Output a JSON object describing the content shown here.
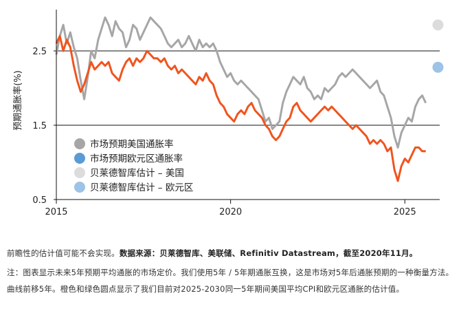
{
  "chart_data": {
    "type": "line",
    "ylabel": "预期通胀率(%)",
    "xlim": [
      2015,
      2026
    ],
    "ylim": [
      0.5,
      3.0
    ],
    "y_ticks": [
      "0.5",
      "1.5",
      "2.5"
    ],
    "y_tick_values": [
      0.5,
      1.5,
      2.5
    ],
    "x_ticks": [
      "2015",
      "2020",
      "2025"
    ],
    "x_tick_values": [
      2015,
      2020,
      2025
    ],
    "gridlines": [
      0.5,
      1.5,
      2.5
    ],
    "legend": {
      "placement": "bottom-left",
      "entries": [
        {
          "label": "市场预期美国通胀率",
          "color": "#a6a6a6"
        },
        {
          "label": "市场预期欧元区通胀率",
          "color": "#5b9bd5"
        },
        {
          "label": "贝莱德智库估计 – 美国",
          "color": "#dcdcdc"
        },
        {
          "label": "贝莱德智库估计 – 欧元区",
          "color": "#9dc3e6"
        }
      ]
    },
    "series": [
      {
        "color": "#a6a6a6",
        "points": [
          [
            2015.0,
            2.45
          ],
          [
            2015.1,
            2.7
          ],
          [
            2015.2,
            2.85
          ],
          [
            2015.3,
            2.6
          ],
          [
            2015.4,
            2.75
          ],
          [
            2015.5,
            2.55
          ],
          [
            2015.6,
            2.4
          ],
          [
            2015.7,
            2.1
          ],
          [
            2015.8,
            1.85
          ],
          [
            2015.9,
            2.15
          ],
          [
            2016.0,
            2.5
          ],
          [
            2016.1,
            2.4
          ],
          [
            2016.2,
            2.65
          ],
          [
            2016.3,
            2.8
          ],
          [
            2016.4,
            2.95
          ],
          [
            2016.5,
            2.85
          ],
          [
            2016.6,
            2.7
          ],
          [
            2016.7,
            2.9
          ],
          [
            2016.8,
            2.8
          ],
          [
            2016.9,
            2.75
          ],
          [
            2017.0,
            2.55
          ],
          [
            2017.1,
            2.65
          ],
          [
            2017.2,
            2.85
          ],
          [
            2017.3,
            2.8
          ],
          [
            2017.4,
            2.65
          ],
          [
            2017.5,
            2.75
          ],
          [
            2017.6,
            2.85
          ],
          [
            2017.7,
            2.95
          ],
          [
            2017.8,
            2.9
          ],
          [
            2017.9,
            2.85
          ],
          [
            2018.0,
            2.8
          ],
          [
            2018.1,
            2.7
          ],
          [
            2018.2,
            2.6
          ],
          [
            2018.3,
            2.55
          ],
          [
            2018.4,
            2.6
          ],
          [
            2018.5,
            2.65
          ],
          [
            2018.6,
            2.55
          ],
          [
            2018.7,
            2.6
          ],
          [
            2018.8,
            2.7
          ],
          [
            2018.9,
            2.6
          ],
          [
            2019.0,
            2.5
          ],
          [
            2019.1,
            2.65
          ],
          [
            2019.2,
            2.55
          ],
          [
            2019.3,
            2.6
          ],
          [
            2019.4,
            2.55
          ],
          [
            2019.5,
            2.6
          ],
          [
            2019.6,
            2.5
          ],
          [
            2019.7,
            2.35
          ],
          [
            2019.8,
            2.25
          ],
          [
            2019.9,
            2.15
          ],
          [
            2020.0,
            2.2
          ],
          [
            2020.1,
            2.1
          ],
          [
            2020.2,
            2.05
          ],
          [
            2020.3,
            2.1
          ],
          [
            2020.4,
            2.05
          ],
          [
            2020.5,
            2.0
          ],
          [
            2020.6,
            1.95
          ],
          [
            2020.7,
            1.9
          ],
          [
            2020.8,
            1.85
          ],
          [
            2020.9,
            1.7
          ],
          [
            2021.0,
            1.55
          ],
          [
            2021.1,
            1.6
          ],
          [
            2021.2,
            1.45
          ],
          [
            2021.3,
            1.5
          ],
          [
            2021.4,
            1.55
          ],
          [
            2021.5,
            1.8
          ],
          [
            2021.6,
            1.95
          ],
          [
            2021.7,
            2.05
          ],
          [
            2021.8,
            2.15
          ],
          [
            2021.9,
            2.1
          ],
          [
            2022.0,
            2.05
          ],
          [
            2022.1,
            2.15
          ],
          [
            2022.2,
            2.0
          ],
          [
            2022.3,
            1.95
          ],
          [
            2022.4,
            1.85
          ],
          [
            2022.5,
            1.9
          ],
          [
            2022.6,
            1.85
          ],
          [
            2022.7,
            2.0
          ],
          [
            2022.8,
            1.95
          ],
          [
            2022.9,
            2.0
          ],
          [
            2023.0,
            2.05
          ],
          [
            2023.1,
            2.15
          ],
          [
            2023.2,
            2.2
          ],
          [
            2023.3,
            2.15
          ],
          [
            2023.4,
            2.2
          ],
          [
            2023.5,
            2.25
          ],
          [
            2023.6,
            2.2
          ],
          [
            2023.7,
            2.15
          ],
          [
            2023.8,
            2.1
          ],
          [
            2023.9,
            2.05
          ],
          [
            2024.0,
            2.0
          ],
          [
            2024.1,
            2.05
          ],
          [
            2024.2,
            2.1
          ],
          [
            2024.3,
            1.95
          ],
          [
            2024.4,
            1.9
          ],
          [
            2024.5,
            1.75
          ],
          [
            2024.6,
            1.6
          ],
          [
            2024.7,
            1.35
          ],
          [
            2024.8,
            1.2
          ],
          [
            2024.9,
            1.4
          ],
          [
            2025.0,
            1.5
          ],
          [
            2025.1,
            1.6
          ],
          [
            2025.2,
            1.55
          ],
          [
            2025.3,
            1.75
          ],
          [
            2025.4,
            1.85
          ],
          [
            2025.5,
            1.9
          ],
          [
            2025.6,
            1.8
          ]
        ]
      },
      {
        "color": "#f0541e",
        "points": [
          [
            2015.0,
            2.6
          ],
          [
            2015.1,
            2.7
          ],
          [
            2015.2,
            2.5
          ],
          [
            2015.3,
            2.65
          ],
          [
            2015.4,
            2.55
          ],
          [
            2015.5,
            2.3
          ],
          [
            2015.6,
            2.1
          ],
          [
            2015.7,
            1.95
          ],
          [
            2015.8,
            2.05
          ],
          [
            2015.9,
            2.2
          ],
          [
            2016.0,
            2.35
          ],
          [
            2016.1,
            2.25
          ],
          [
            2016.2,
            2.3
          ],
          [
            2016.3,
            2.35
          ],
          [
            2016.4,
            2.3
          ],
          [
            2016.5,
            2.35
          ],
          [
            2016.6,
            2.2
          ],
          [
            2016.7,
            2.15
          ],
          [
            2016.8,
            2.1
          ],
          [
            2016.9,
            2.25
          ],
          [
            2017.0,
            2.35
          ],
          [
            2017.1,
            2.4
          ],
          [
            2017.2,
            2.3
          ],
          [
            2017.3,
            2.4
          ],
          [
            2017.4,
            2.35
          ],
          [
            2017.5,
            2.4
          ],
          [
            2017.6,
            2.5
          ],
          [
            2017.7,
            2.45
          ],
          [
            2017.8,
            2.4
          ],
          [
            2017.9,
            2.4
          ],
          [
            2018.0,
            2.35
          ],
          [
            2018.1,
            2.4
          ],
          [
            2018.2,
            2.3
          ],
          [
            2018.3,
            2.25
          ],
          [
            2018.4,
            2.3
          ],
          [
            2018.5,
            2.2
          ],
          [
            2018.6,
            2.25
          ],
          [
            2018.7,
            2.2
          ],
          [
            2018.8,
            2.15
          ],
          [
            2018.9,
            2.1
          ],
          [
            2019.0,
            2.05
          ],
          [
            2019.1,
            2.15
          ],
          [
            2019.2,
            2.1
          ],
          [
            2019.3,
            2.2
          ],
          [
            2019.4,
            2.1
          ],
          [
            2019.5,
            2.05
          ],
          [
            2019.6,
            1.9
          ],
          [
            2019.7,
            1.8
          ],
          [
            2019.8,
            1.75
          ],
          [
            2019.9,
            1.65
          ],
          [
            2020.0,
            1.6
          ],
          [
            2020.1,
            1.55
          ],
          [
            2020.2,
            1.65
          ],
          [
            2020.3,
            1.7
          ],
          [
            2020.4,
            1.65
          ],
          [
            2020.5,
            1.75
          ],
          [
            2020.6,
            1.8
          ],
          [
            2020.7,
            1.7
          ],
          [
            2020.8,
            1.65
          ],
          [
            2020.9,
            1.6
          ],
          [
            2021.0,
            1.5
          ],
          [
            2021.1,
            1.45
          ],
          [
            2021.2,
            1.35
          ],
          [
            2021.3,
            1.3
          ],
          [
            2021.4,
            1.35
          ],
          [
            2021.5,
            1.45
          ],
          [
            2021.6,
            1.55
          ],
          [
            2021.7,
            1.6
          ],
          [
            2021.8,
            1.75
          ],
          [
            2021.9,
            1.8
          ],
          [
            2022.0,
            1.7
          ],
          [
            2022.1,
            1.65
          ],
          [
            2022.2,
            1.6
          ],
          [
            2022.3,
            1.55
          ],
          [
            2022.4,
            1.6
          ],
          [
            2022.5,
            1.65
          ],
          [
            2022.6,
            1.7
          ],
          [
            2022.7,
            1.75
          ],
          [
            2022.8,
            1.7
          ],
          [
            2022.9,
            1.75
          ],
          [
            2023.0,
            1.7
          ],
          [
            2023.1,
            1.65
          ],
          [
            2023.2,
            1.6
          ],
          [
            2023.3,
            1.55
          ],
          [
            2023.4,
            1.5
          ],
          [
            2023.5,
            1.45
          ],
          [
            2023.6,
            1.5
          ],
          [
            2023.7,
            1.45
          ],
          [
            2023.8,
            1.4
          ],
          [
            2023.9,
            1.35
          ],
          [
            2024.0,
            1.25
          ],
          [
            2024.1,
            1.3
          ],
          [
            2024.2,
            1.25
          ],
          [
            2024.3,
            1.3
          ],
          [
            2024.4,
            1.25
          ],
          [
            2024.5,
            1.15
          ],
          [
            2024.6,
            1.2
          ],
          [
            2024.7,
            0.9
          ],
          [
            2024.8,
            0.75
          ],
          [
            2024.9,
            0.95
          ],
          [
            2025.0,
            1.05
          ],
          [
            2025.1,
            1.0
          ],
          [
            2025.2,
            1.1
          ],
          [
            2025.3,
            1.2
          ],
          [
            2025.4,
            1.2
          ],
          [
            2025.5,
            1.15
          ],
          [
            2025.6,
            1.15
          ]
        ]
      }
    ],
    "estimates": [
      {
        "x": 2025.95,
        "y": 2.85,
        "color": "#dcdcdc"
      },
      {
        "x": 2025.95,
        "y": 2.28,
        "color": "#9dc3e6"
      }
    ]
  },
  "notes": {
    "line1_prefix": "前瞻性的估计值可能不会实现。",
    "line1_source": "数据来源：贝莱德智库、美联储、Refinitiv Datastream，截至2020年11月。",
    "line2": "注：图表显示未来5年预期平均通胀的市场定价。我们使用5年 / 5年期通胀互换，这是市场对5年后通胀预期的一种衡量方法。曲线前移5年。橙色和绿色圆点显示了我们目前对2025-2030同一5年期间美国平均CPI和欧元区通胀的估计值。"
  }
}
